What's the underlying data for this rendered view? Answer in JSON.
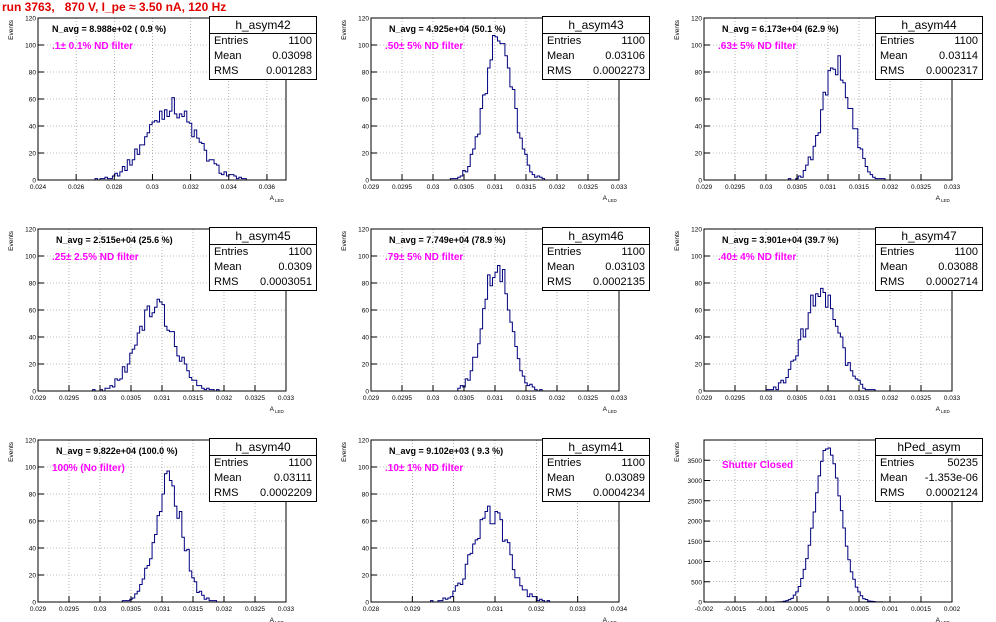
{
  "title": "run 3763,   870 V, I_pe ≈ 3.50 nA, 120 Hz",
  "colors": {
    "title": "#e00000",
    "annotation": "#ff00ff",
    "histogram": "#00007f",
    "grid": "#808080"
  },
  "stat_labels": {
    "entries": "Entries",
    "mean": "Mean",
    "rms": "RMS"
  },
  "ylabel": "Events",
  "xlabel_main": "A",
  "xlabel_sub": "LED",
  "chart_data": [
    {
      "type": "bar",
      "name": "h_asym42",
      "n_avg": "N_avg = 8.988e+02 ( 0.9 %)",
      "annotation": ".1± 0.1% ND filter",
      "entries": "1100",
      "mean": "0.03098",
      "rms": "0.001283",
      "xlim": [
        0.024,
        0.037
      ],
      "ylim": [
        0,
        120
      ],
      "xticks": [
        "0.024",
        "0.026",
        "0.028",
        "0.03",
        "0.032",
        "0.034",
        "0.036"
      ],
      "xtick_values": [
        0.024,
        0.026,
        0.028,
        0.03,
        0.032,
        0.034,
        0.036
      ],
      "yticks": [
        "0",
        "20",
        "40",
        "60",
        "80",
        "100",
        "120"
      ],
      "ytick_values": [
        0,
        20,
        40,
        60,
        80,
        100,
        120
      ],
      "mu": 0.03098,
      "sigma": 0.001283,
      "peak": 54,
      "total": 1100
    },
    {
      "type": "bar",
      "name": "h_asym43",
      "n_avg": "N_avg = 4.925e+04 (50.1 %)",
      "annotation": ".50± 5% ND filter",
      "entries": "1100",
      "mean": "0.03106",
      "rms": "0.0002273",
      "xlim": [
        0.029,
        0.033
      ],
      "ylim": [
        0,
        120
      ],
      "xticks": [
        "0.029",
        "0.0295",
        "0.03",
        "0.0305",
        "0.031",
        "0.0315",
        "0.032",
        "0.0325",
        "0.033"
      ],
      "xtick_values": [
        0.029,
        0.0295,
        0.03,
        0.0305,
        0.031,
        0.0315,
        0.032,
        0.0325,
        0.033
      ],
      "yticks": [
        "0",
        "20",
        "40",
        "60",
        "80",
        "100",
        "120"
      ],
      "ytick_values": [
        0,
        20,
        40,
        60,
        80,
        100,
        120
      ],
      "mu": 0.03106,
      "sigma": 0.0002273,
      "peak": 105,
      "total": 1100
    },
    {
      "type": "bar",
      "name": "h_asym44",
      "n_avg": "N_avg = 6.173e+04 (62.9 %)",
      "annotation": ".63± 5% ND filter",
      "entries": "1100",
      "mean": "0.03114",
      "rms": "0.0002317",
      "xlim": [
        0.029,
        0.033
      ],
      "ylim": [
        0,
        120
      ],
      "xticks": [
        "0.029",
        "0.0295",
        "0.03",
        "0.0305",
        "0.031",
        "0.0315",
        "0.032",
        "0.0325",
        "0.033"
      ],
      "xtick_values": [
        0.029,
        0.0295,
        0.03,
        0.0305,
        0.031,
        0.0315,
        0.032,
        0.0325,
        0.033
      ],
      "yticks": [
        "0",
        "20",
        "40",
        "60",
        "80",
        "100",
        "120"
      ],
      "ytick_values": [
        0,
        20,
        40,
        60,
        80,
        100,
        120
      ],
      "mu": 0.03114,
      "sigma": 0.0002317,
      "peak": 85,
      "total": 1100
    },
    {
      "type": "bar",
      "name": "h_asym45",
      "n_avg": "N_avg = 2.515e+04 (25.6 %)",
      "annotation": ".25± 2.5% ND filter",
      "entries": "1100",
      "mean": "0.0309",
      "rms": "0.0003051",
      "xlim": [
        0.029,
        0.033
      ],
      "ylim": [
        0,
        120
      ],
      "xticks": [
        "0.029",
        "0.0295",
        "0.03",
        "0.0305",
        "0.031",
        "0.0315",
        "0.032",
        "0.0325",
        "0.033"
      ],
      "xtick_values": [
        0.029,
        0.0295,
        0.03,
        0.0305,
        0.031,
        0.0315,
        0.032,
        0.0325,
        0.033
      ],
      "yticks": [
        "0",
        "20",
        "40",
        "60",
        "80",
        "100",
        "120"
      ],
      "ytick_values": [
        0,
        20,
        40,
        60,
        80,
        100,
        120
      ],
      "mu": 0.0309,
      "sigma": 0.0003051,
      "peak": 62,
      "total": 1100
    },
    {
      "type": "bar",
      "name": "h_asym46",
      "n_avg": "N_avg = 7.749e+04 (78.9 %)",
      "annotation": ".79± 5% ND filter",
      "entries": "1100",
      "mean": "0.03103",
      "rms": "0.0002135",
      "xlim": [
        0.029,
        0.033
      ],
      "ylim": [
        0,
        120
      ],
      "xticks": [
        "0.029",
        "0.0295",
        "0.03",
        "0.0305",
        "0.031",
        "0.0315",
        "0.032",
        "0.0325",
        "0.033"
      ],
      "xtick_values": [
        0.029,
        0.0295,
        0.03,
        0.0305,
        0.031,
        0.0315,
        0.032,
        0.0325,
        0.033
      ],
      "yticks": [
        "0",
        "20",
        "40",
        "60",
        "80",
        "100",
        "120"
      ],
      "ytick_values": [
        0,
        20,
        40,
        60,
        80,
        100,
        120
      ],
      "mu": 0.03103,
      "sigma": 0.0002135,
      "peak": 95,
      "total": 1100
    },
    {
      "type": "bar",
      "name": "h_asym47",
      "n_avg": "N_avg = 3.901e+04 (39.7 %)",
      "annotation": ".40± 4% ND filter",
      "entries": "1100",
      "mean": "0.03088",
      "rms": "0.0002714",
      "xlim": [
        0.029,
        0.033
      ],
      "ylim": [
        0,
        120
      ],
      "xticks": [
        "0.029",
        "0.0295",
        "0.03",
        "0.0305",
        "0.031",
        "0.0315",
        "0.032",
        "0.0325",
        "0.033"
      ],
      "xtick_values": [
        0.029,
        0.0295,
        0.03,
        0.0305,
        0.031,
        0.0315,
        0.032,
        0.0325,
        0.033
      ],
      "yticks": [
        "0",
        "20",
        "40",
        "60",
        "80",
        "100",
        "120"
      ],
      "ytick_values": [
        0,
        20,
        40,
        60,
        80,
        100,
        120
      ],
      "mu": 0.03088,
      "sigma": 0.0002714,
      "peak": 74,
      "total": 1100
    },
    {
      "type": "bar",
      "name": "h_asym40",
      "n_avg": "N_avg = 9.822e+04 (100.0 %)",
      "annotation": "100% (No filter)",
      "entries": "1100",
      "mean": "0.03111",
      "rms": "0.0002209",
      "xlim": [
        0.029,
        0.033
      ],
      "ylim": [
        0,
        120
      ],
      "xticks": [
        "0.029",
        "0.0295",
        "0.03",
        "0.0305",
        "0.031",
        "0.0315",
        "0.032",
        "0.0325",
        "0.033"
      ],
      "xtick_values": [
        0.029,
        0.0295,
        0.03,
        0.0305,
        0.031,
        0.0315,
        0.032,
        0.0325,
        0.033
      ],
      "yticks": [
        "0",
        "20",
        "40",
        "60",
        "80",
        "100",
        "120"
      ],
      "ytick_values": [
        0,
        20,
        40,
        60,
        80,
        100,
        120
      ],
      "mu": 0.03111,
      "sigma": 0.0002209,
      "peak": 88,
      "total": 1100
    },
    {
      "type": "bar",
      "name": "h_asym41",
      "n_avg": "N_avg = 9.102e+03 ( 9.3 %)",
      "annotation": ".10± 1% ND filter",
      "entries": "1100",
      "mean": "0.03089",
      "rms": "0.0004234",
      "xlim": [
        0.028,
        0.034
      ],
      "ylim": [
        0,
        120
      ],
      "xticks": [
        "0.028",
        "0.029",
        "0.03",
        "0.031",
        "0.032",
        "0.033",
        "0.034"
      ],
      "xtick_values": [
        0.028,
        0.029,
        0.03,
        0.031,
        0.032,
        0.033,
        0.034
      ],
      "yticks": [
        "0",
        "20",
        "40",
        "60",
        "80",
        "100",
        "120"
      ],
      "ytick_values": [
        0,
        20,
        40,
        60,
        80,
        100,
        120
      ],
      "mu": 0.03089,
      "sigma": 0.0004234,
      "peak": 66,
      "total": 1100
    },
    {
      "type": "bar",
      "name": "hPed_asym",
      "n_avg": "",
      "annotation": "Shutter Closed",
      "entries": "50235",
      "mean": "-1.353e-06",
      "rms": "0.0002124",
      "xlim": [
        -0.002,
        0.002
      ],
      "ylim": [
        0,
        4000
      ],
      "xticks": [
        "-0.002",
        "-0.0015",
        "-0.001",
        "-0.0005",
        "0",
        "0.0005",
        "0.001",
        "0.0015",
        "0.002"
      ],
      "xtick_values": [
        -0.002,
        -0.0015,
        -0.001,
        -0.0005,
        0,
        0.0005,
        0.001,
        0.0015,
        0.002
      ],
      "yticks": [
        "0",
        "500",
        "1000",
        "1500",
        "2000",
        "2500",
        "3000",
        "3500"
      ],
      "ytick_values": [
        0,
        500,
        1000,
        1500,
        2000,
        2500,
        3000,
        3500
      ],
      "mu": -1.353e-06,
      "sigma": 0.0002124,
      "peak": 3850,
      "total": 50235
    }
  ]
}
